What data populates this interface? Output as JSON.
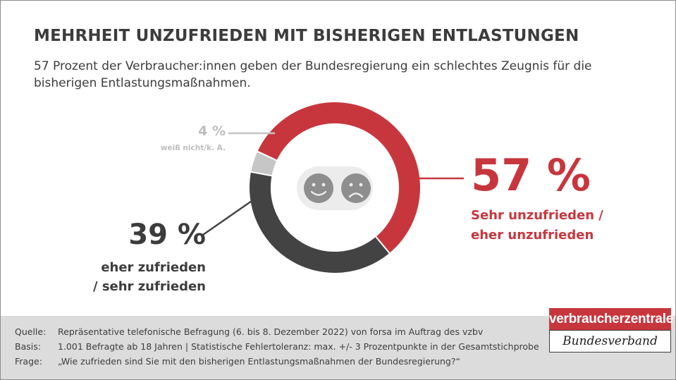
{
  "title": "MEHRHEIT UNZUFRIEDEN MIT BISHERIGEN ENTLASTUNGEN",
  "subtitle": "57 Prozent der Verbraucher:innen geben der Bundesregierung ein schlechtes Zeugnis für die bisherigen Entlastungsmaßnahmen.",
  "chart_data": {
    "type": "pie",
    "style": "donut",
    "segments": [
      {
        "key": "unzufrieden",
        "value": 57,
        "label": "57 %",
        "category": "Sehr unzufrieden / eher unzufrieden",
        "color": "#c8363d"
      },
      {
        "key": "zufrieden",
        "value": 39,
        "label": "39 %",
        "category": "eher zufrieden / sehr zufrieden",
        "color": "#434343"
      },
      {
        "key": "weiss_nicht",
        "value": 4,
        "label": "4 %",
        "category": "weiß nicht/k. A.",
        "color": "#c6c6c6"
      }
    ],
    "center_icons": [
      "smiley-face-icon",
      "sad-face-icon"
    ]
  },
  "labels": {
    "red_cat_line1": "Sehr unzufrieden /",
    "red_cat_line2": "eher unzufrieden",
    "dark_cat_line1": "eher zufrieden",
    "dark_cat_line2": "/ sehr zufrieden"
  },
  "footer": {
    "rows": [
      {
        "key": "Quelle:",
        "value": "Repräsentative telefonische Befragung (6. bis 8. Dezember 2022) von forsa im Auftrag des vzbv"
      },
      {
        "key": "Basis:",
        "value": "1.001 Befragte ab 18 Jahren | Statistische Fehlertoleranz: max. +/- 3 Prozentpunkte in der Gesamtstichprobe"
      },
      {
        "key": "Frage:",
        "value": "„Wie zufrieden sind Sie mit den bisherigen Entlastungsmaßnahmen der Bundesregierung?“"
      }
    ]
  },
  "logo": {
    "top": "verbraucherzentrale",
    "bottom": "Bundesverband"
  }
}
